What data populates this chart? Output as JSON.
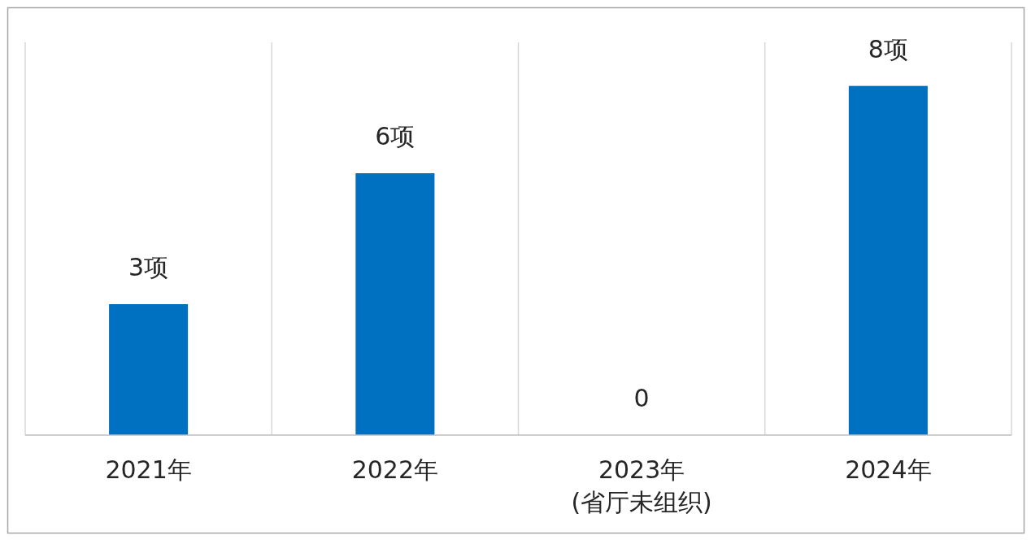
{
  "chart_data": {
    "type": "bar",
    "categories": [
      "2021年",
      "2022年",
      "2023年\n(省厅未组织)",
      "2024年"
    ],
    "values": [
      3,
      6,
      0,
      8
    ],
    "value_labels": [
      "3项",
      "6项",
      "0",
      "8项"
    ],
    "color": "#0070c0",
    "ylim": [
      0,
      9
    ],
    "grid": "x"
  }
}
